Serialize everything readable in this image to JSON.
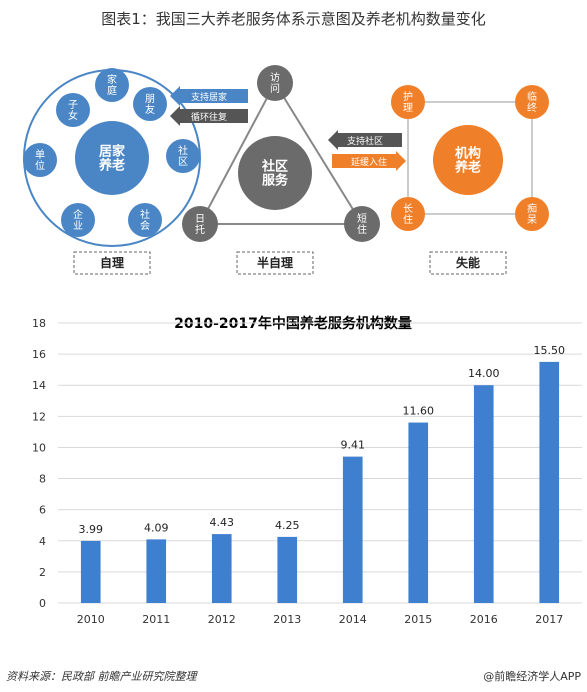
{
  "figure_title": "图表1：我国三大养老服务体系示意图及养老机构数量变化",
  "diagram": {
    "left_cluster": {
      "center": "居家\n养老",
      "nodes": [
        "家\n庭",
        "朋\n友",
        "社\n区",
        "社\n会",
        "企\n业",
        "单\n位",
        "子\n女"
      ],
      "group_label": "自理"
    },
    "middle_cluster": {
      "center": "社区\n服务",
      "nodes": [
        "访\n问",
        "日\n托",
        "短\n住"
      ],
      "group_label": "半自理"
    },
    "right_cluster": {
      "center": "机构\n养老",
      "nodes": [
        "护\n理",
        "临\n终",
        "痴\n呆",
        "长\n住"
      ],
      "group_label": "失能"
    },
    "arrows_left": [
      "支持居家",
      "循环往复"
    ],
    "arrows_right": [
      "支持社区",
      "延缓入住"
    ],
    "colors": {
      "blue": "#4a86c5",
      "gray": "#6b6b6b",
      "orange": "#f07f2a",
      "arrow_gray": "#555555"
    }
  },
  "chart_data": {
    "type": "bar",
    "title": "2010-2017年中国养老服务机构数量",
    "categories": [
      "2010",
      "2011",
      "2012",
      "2013",
      "2014",
      "2015",
      "2016",
      "2017"
    ],
    "values": [
      3.99,
      4.09,
      4.43,
      4.25,
      9.41,
      11.6,
      14.0,
      15.5
    ],
    "value_labels": [
      "3.99",
      "4.09",
      "4.43",
      "4.25",
      "9.41",
      "11.60",
      "14.00",
      "15.50"
    ],
    "ylim": [
      0,
      18
    ],
    "yticks": [
      0,
      2,
      4,
      6,
      8,
      10,
      12,
      14,
      16,
      18
    ],
    "grid": true,
    "bar_color": "#3f7fd0"
  },
  "footer": {
    "source": "资料来源：民政部 前瞻产业研究院整理",
    "credit": "@前瞻经济学人APP"
  }
}
